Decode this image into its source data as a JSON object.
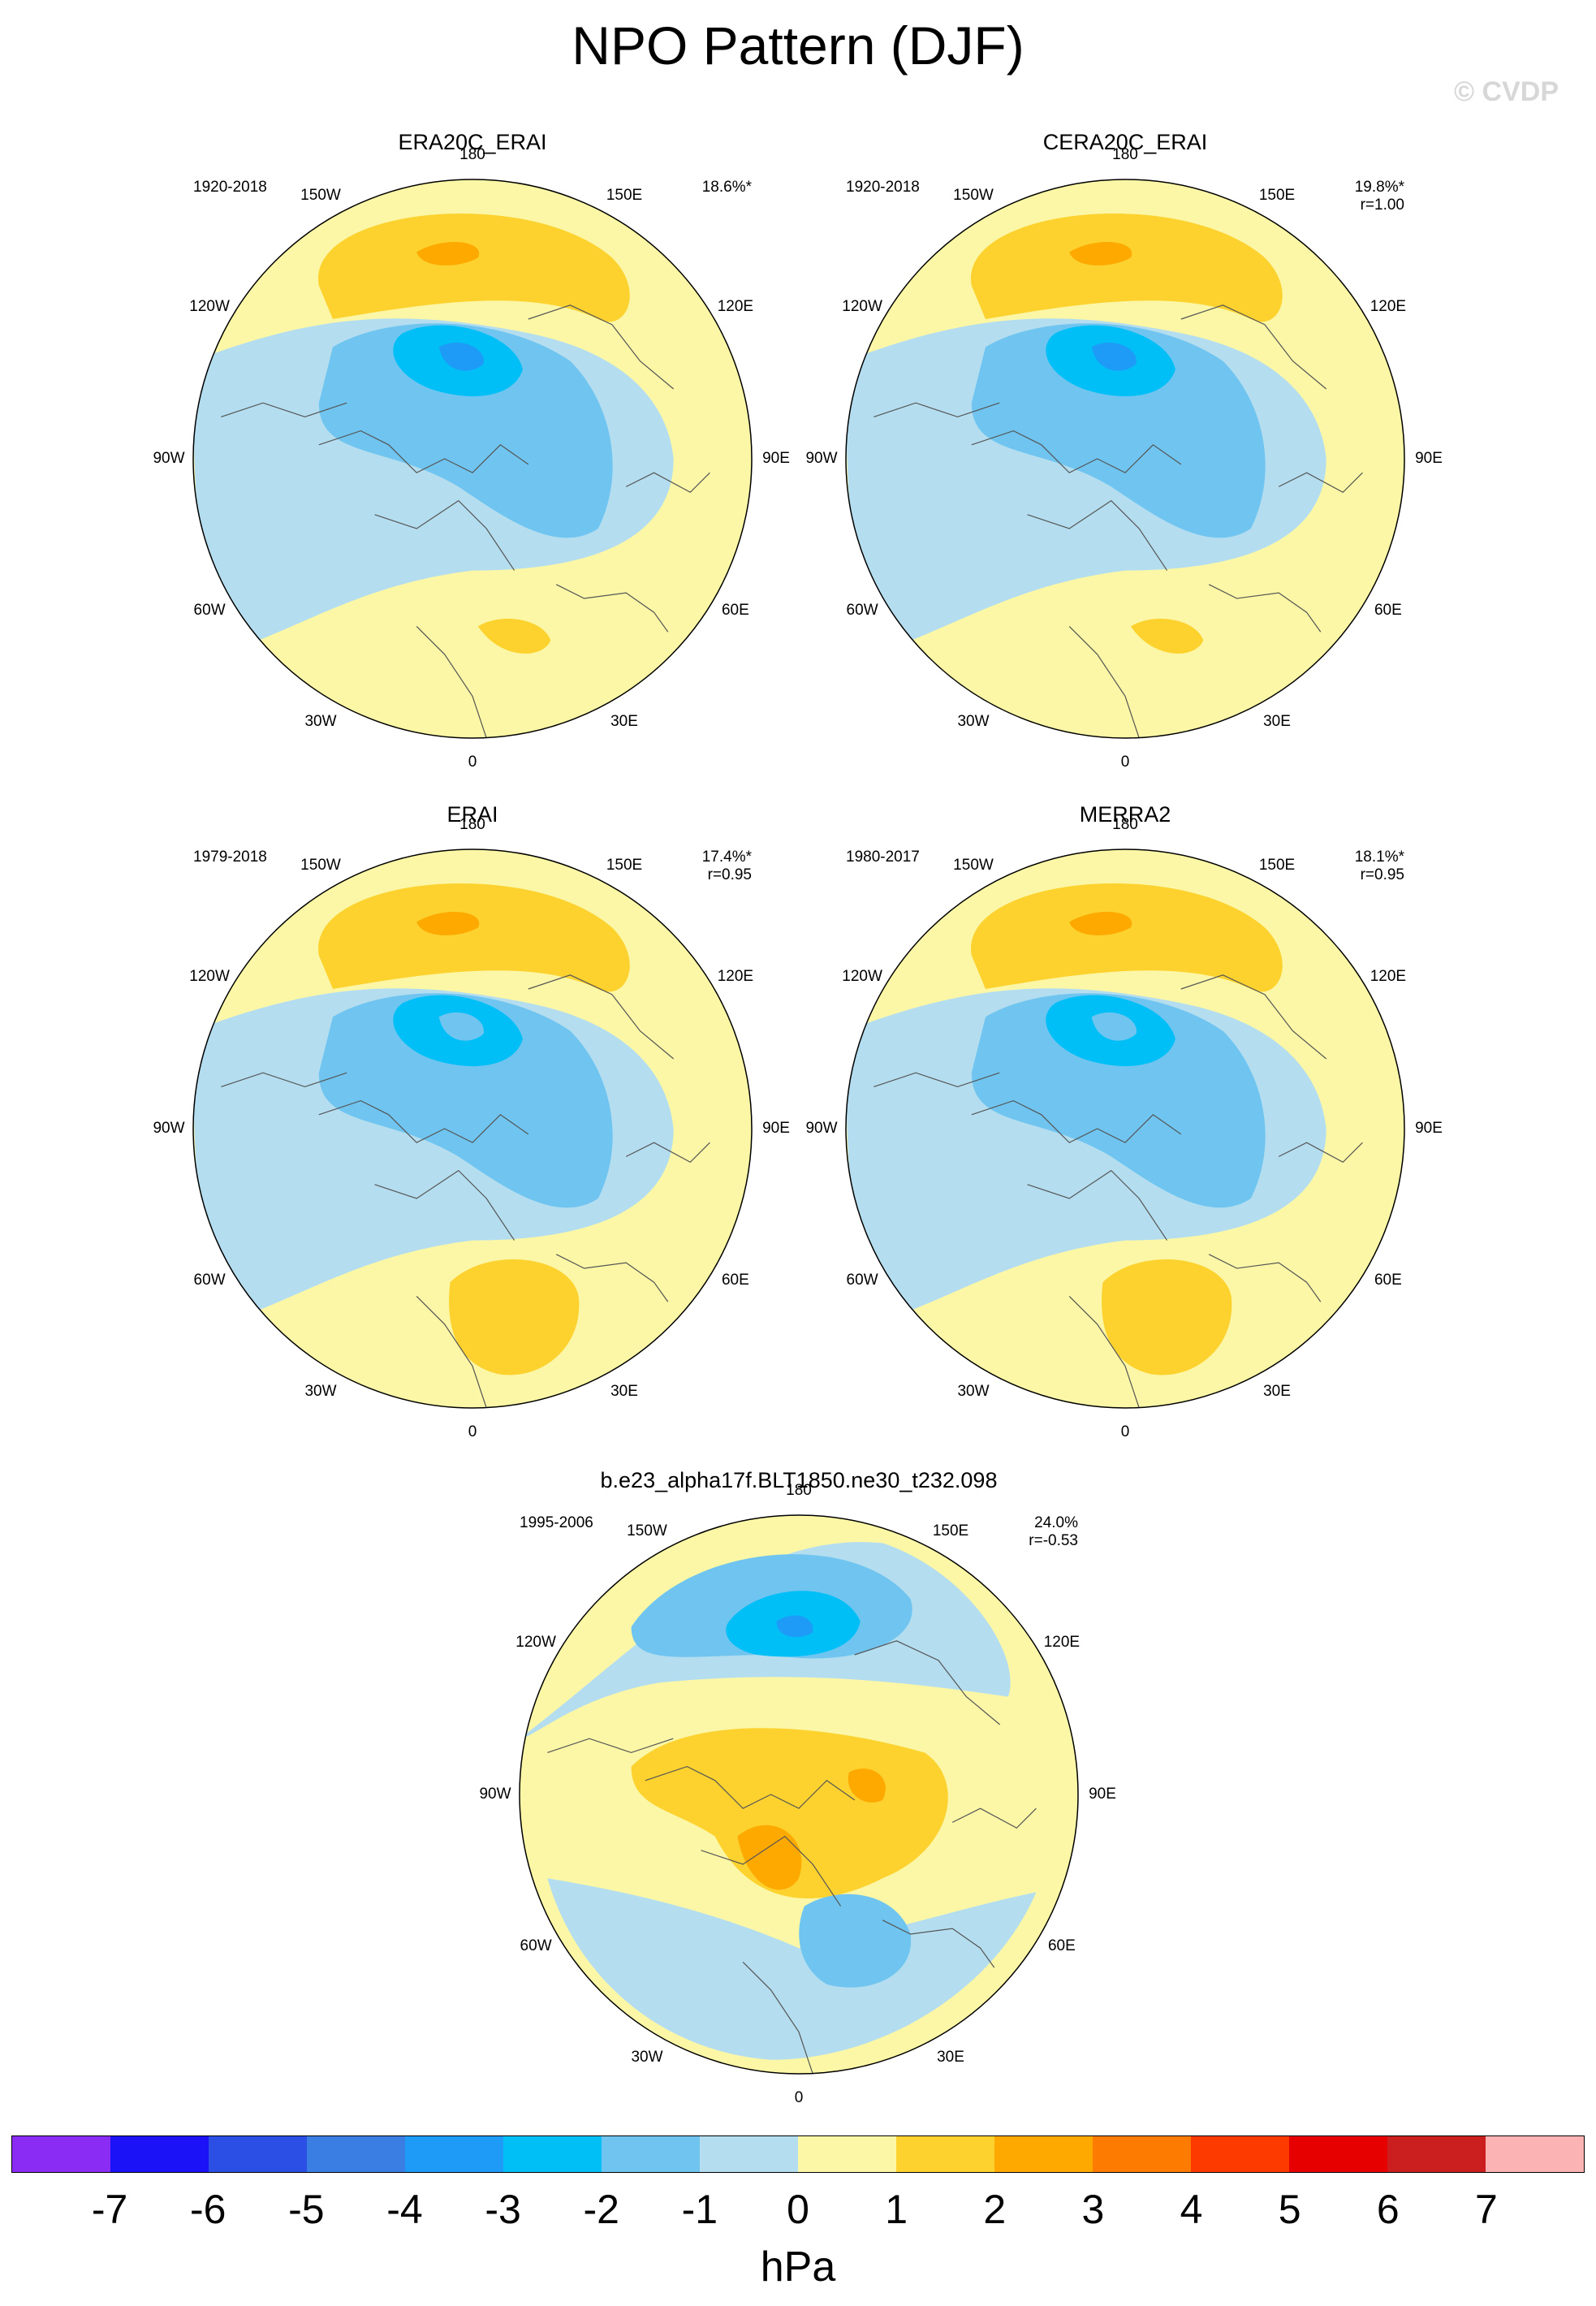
{
  "figure": {
    "title": "NPO Pattern (DJF)",
    "copyright": "© CVDP",
    "unit": "hPa"
  },
  "labels": {
    "lon": [
      "180",
      "150E",
      "120E",
      "90E",
      "60E",
      "30E",
      "0",
      "30W",
      "60W",
      "90W",
      "120W",
      "150W"
    ]
  },
  "panels": [
    {
      "title": "ERA20C_ERAI",
      "years": "1920-2018",
      "pct": "18.6%*",
      "r": ""
    },
    {
      "title": "CERA20C_ERAI",
      "years": "1920-2018",
      "pct": "19.8%*",
      "r": "r=1.00"
    },
    {
      "title": "ERAI",
      "years": "1979-2018",
      "pct": "17.4%*",
      "r": "r=0.95"
    },
    {
      "title": "MERRA2",
      "years": "1980-2017",
      "pct": "18.1%*",
      "r": "r=0.95"
    },
    {
      "title": "b.e23_alpha17f.BLT1850.ne30_t232.098",
      "years": "1995-2006",
      "pct": "24.0%",
      "r": "r=-0.53"
    }
  ],
  "colorbar": {
    "colors": [
      "#8b2cf5",
      "#1b12f7",
      "#2b4ee5",
      "#3a7ee3",
      "#1e9bf6",
      "#00bff7",
      "#6fc5f0",
      "#b4def0",
      "#fbf7a6",
      "#fdd22f",
      "#fda900",
      "#fd7b00",
      "#fd3b00",
      "#e60000",
      "#cb1f1f",
      "#fcb3b3"
    ],
    "levels": [
      "-7",
      "-6",
      "-5",
      "-4",
      "-3",
      "-2",
      "-1",
      "0",
      "1",
      "2",
      "3",
      "4",
      "5",
      "6",
      "7"
    ]
  },
  "colors": {
    "neg1": "#b4def0",
    "neg2": "#6fc5f0",
    "neg3": "#00bff7",
    "neg4": "#1e9bf6",
    "pos1": "#fbf7a6",
    "pos2": "#fdd22f",
    "pos3": "#fda900"
  }
}
